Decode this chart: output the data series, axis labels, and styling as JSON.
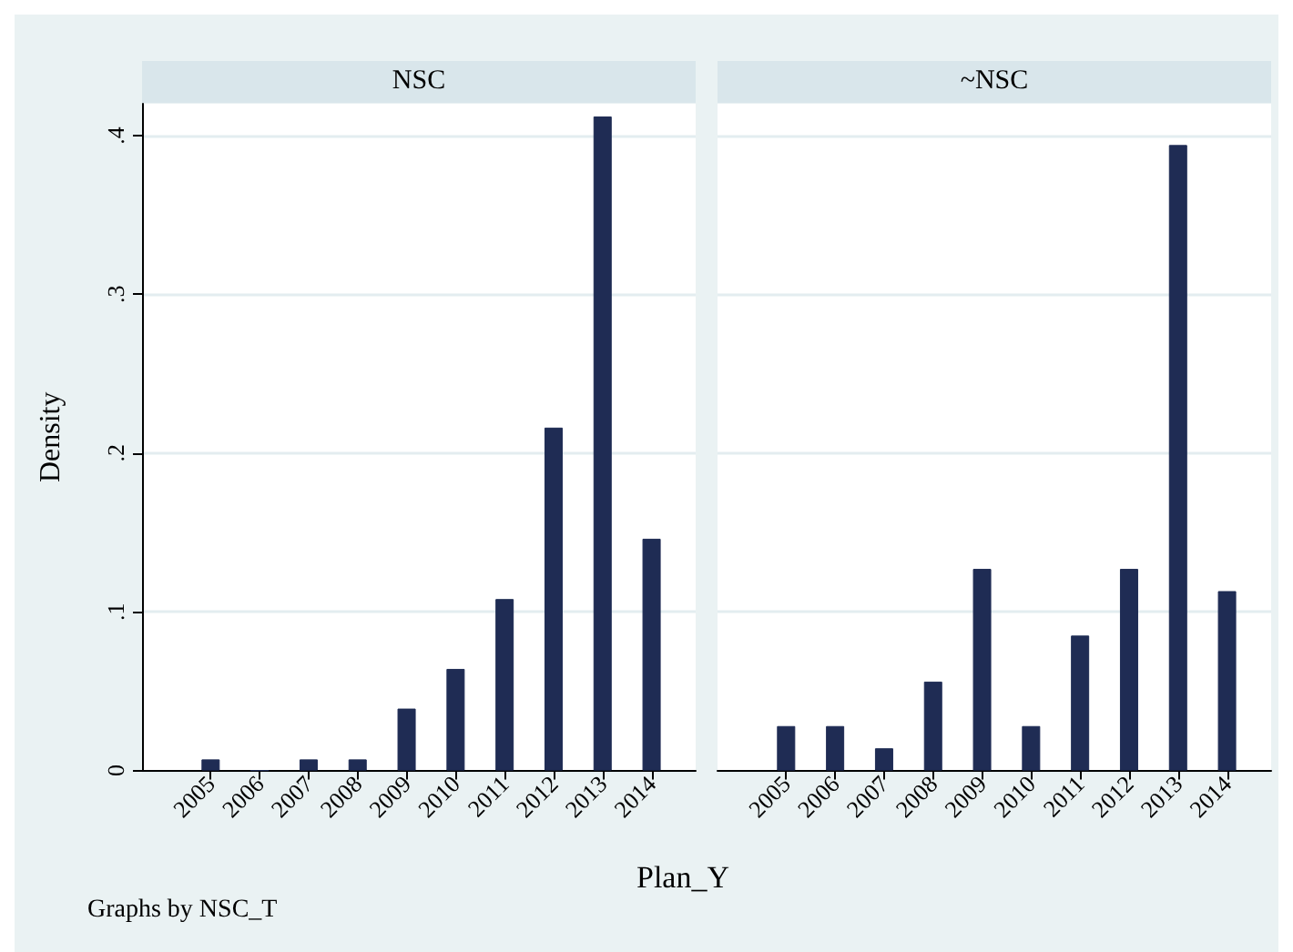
{
  "chart_data": [
    {
      "type": "bar",
      "title": "NSC",
      "ylabel": "Density",
      "xlabel": "Plan_Y",
      "annotations": [
        "Graphs by NSC_T"
      ],
      "x": [
        2005,
        2006,
        2007,
        2008,
        2009,
        2010,
        2011,
        2012,
        2013,
        2014
      ],
      "values": [
        0.007,
        0,
        0.007,
        0.007,
        0.039,
        0.064,
        0.108,
        0.216,
        0.412,
        0.146
      ],
      "color": "#1f2c54",
      "xlim": [
        2003.6,
        2014.9
      ],
      "xticks": [
        2005,
        2006,
        2007,
        2008,
        2009,
        2010,
        2011,
        2012,
        2013,
        2014
      ],
      "ylim": [
        0,
        0.42
      ],
      "yticks": [
        0,
        {
          "value": 0.1,
          "label": ".1"
        },
        {
          "value": 0.2,
          "label": ".2"
        },
        {
          "value": 0.3,
          "label": ".3"
        },
        {
          "value": 0.4,
          "label": ".4"
        }
      ],
      "grid": "y"
    },
    {
      "type": "bar",
      "title": "~NSC",
      "x": [
        2005,
        2006,
        2007,
        2008,
        2009,
        2010,
        2011,
        2012,
        2013,
        2014
      ],
      "values": [
        0.028,
        0.028,
        0.014,
        0.056,
        0.127,
        0.028,
        0.085,
        0.127,
        0.394,
        0.113
      ],
      "color": "#1f2c54",
      "xlim": [
        2003.6,
        2014.9
      ],
      "xticks": [
        2005,
        2006,
        2007,
        2008,
        2009,
        2010,
        2011,
        2012,
        2013,
        2014
      ],
      "ylim": [
        0,
        0.42
      ],
      "yticks": [
        0,
        0.1,
        0.2,
        0.3,
        0.4
      ],
      "grid": "y",
      "tick_labels": "x"
    }
  ]
}
